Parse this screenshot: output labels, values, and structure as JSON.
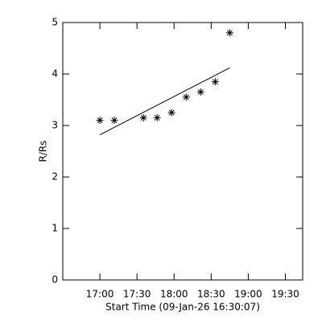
{
  "chart_data": {
    "type": "scatter",
    "xlabel": "Start Time (09-Jan-26 16:30:07)",
    "ylabel": "R/Rs",
    "xlim": [
      0,
      194
    ],
    "ylim": [
      0,
      5
    ],
    "xticks": [
      {
        "value": 30,
        "label": "17:00"
      },
      {
        "value": 60,
        "label": "17:30"
      },
      {
        "value": 90,
        "label": "18:00"
      },
      {
        "value": 120,
        "label": "18:30"
      },
      {
        "value": 150,
        "label": "19:00"
      },
      {
        "value": 180,
        "label": "19:30"
      }
    ],
    "yticks": [
      0,
      1,
      2,
      3,
      4,
      5
    ],
    "series": [
      {
        "style": "markers",
        "color": "#000000",
        "x": [
          30,
          41.7,
          65.2,
          76.3,
          88,
          99.8,
          111.5,
          123.3,
          135
        ],
        "values": [
          3.1,
          3.1,
          3.15,
          3.15,
          3.25,
          3.55,
          3.65,
          3.85,
          4.8
        ]
      },
      {
        "style": "line",
        "color": "#000000",
        "x": [
          30,
          135
        ],
        "values": [
          2.82,
          4.12
        ]
      }
    ]
  }
}
